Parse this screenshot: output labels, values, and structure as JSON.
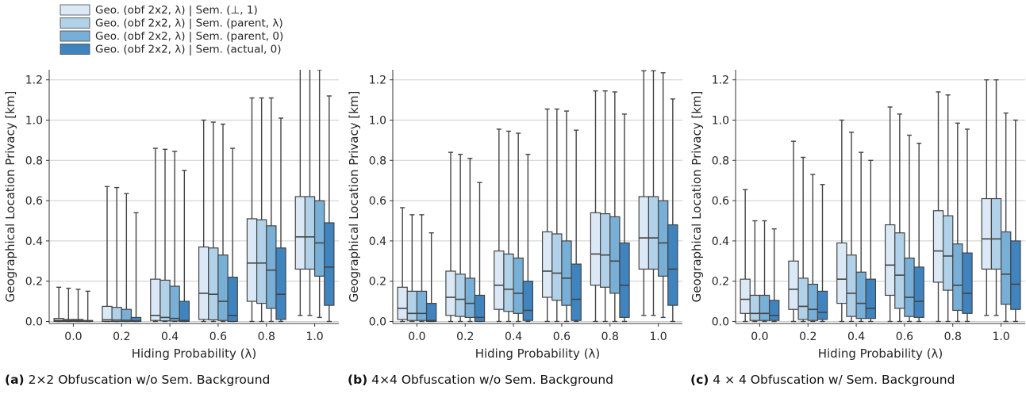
{
  "legend": {
    "entries": [
      {
        "label": "Geo. (obf 2x2, λ) | Sem. (⊥, 1)",
        "color": "#dbe9f6"
      },
      {
        "label": "Geo. (obf 2x2, λ) | Sem. (parent, λ)",
        "color": "#b0d1e7"
      },
      {
        "label": "Geo. (obf 2x2, λ) | Sem. (parent, 0)",
        "color": "#78afd6"
      },
      {
        "label": "Geo. (obf 2x2, λ) | Sem. (actual, 0)",
        "color": "#3f84bf"
      }
    ]
  },
  "captions": [
    {
      "tag": "(a)",
      "text": "2×2 Obfuscation w/o Sem. Background"
    },
    {
      "tag": "(b)",
      "text": "4×4 Obfuscation w/o Sem. Background"
    },
    {
      "tag": "(c)",
      "text": "4 × 4 Obfuscation w/ Sem. Background"
    }
  ],
  "chart_data": [
    {
      "type": "box",
      "xlabel": "Hiding Probability (λ)",
      "ylabel": "Geographical Location Privacy [km]",
      "categories": [
        "0.0",
        "0.2",
        "0.4",
        "0.6",
        "0.8",
        "1.0"
      ],
      "yticks": [
        "0.0",
        "0.2",
        "0.4",
        "0.6",
        "0.8",
        "1.0",
        "1.2"
      ],
      "ylim": [
        -0.01,
        1.25
      ],
      "grid": "horizontal",
      "series": [
        {
          "name": "Geo. (obf 2x2, λ) | Sem. (⊥, 1)",
          "boxes": [
            {
              "min": 0,
              "q1": 0.0,
              "median": 0.005,
              "q3": 0.015,
              "max": 0.17
            },
            {
              "min": 0,
              "q1": 0.0,
              "median": 0.008,
              "q3": 0.075,
              "max": 0.67
            },
            {
              "min": 0,
              "q1": 0.005,
              "median": 0.03,
              "q3": 0.21,
              "max": 0.86
            },
            {
              "min": 0,
              "q1": 0.01,
              "median": 0.14,
              "q3": 0.37,
              "max": 1.0
            },
            {
              "min": 0,
              "q1": 0.1,
              "median": 0.29,
              "q3": 0.51,
              "max": 1.11
            },
            {
              "min": 0.03,
              "q1": 0.26,
              "median": 0.42,
              "q3": 0.62,
              "max": 1.27
            }
          ]
        },
        {
          "name": "Geo. (obf 2x2, λ) | Sem. (parent, λ)",
          "boxes": [
            {
              "min": 0,
              "q1": 0.0,
              "median": 0.004,
              "q3": 0.01,
              "max": 0.165
            },
            {
              "min": 0,
              "q1": 0.0,
              "median": 0.007,
              "q3": 0.07,
              "max": 0.665
            },
            {
              "min": 0,
              "q1": 0.003,
              "median": 0.02,
              "q3": 0.205,
              "max": 0.855
            },
            {
              "min": 0,
              "q1": 0.008,
              "median": 0.135,
              "q3": 0.365,
              "max": 0.99
            },
            {
              "min": 0,
              "q1": 0.09,
              "median": 0.29,
              "q3": 0.505,
              "max": 1.11
            },
            {
              "min": 0.03,
              "q1": 0.26,
              "median": 0.42,
              "q3": 0.62,
              "max": 1.27
            }
          ]
        },
        {
          "name": "Geo. (obf 2x2, λ) | Sem. (parent, 0)",
          "boxes": [
            {
              "min": 0,
              "q1": 0.0,
              "median": 0.004,
              "q3": 0.01,
              "max": 0.16
            },
            {
              "min": 0,
              "q1": 0.0,
              "median": 0.006,
              "q3": 0.06,
              "max": 0.635
            },
            {
              "min": 0,
              "q1": 0.002,
              "median": 0.015,
              "q3": 0.175,
              "max": 0.845
            },
            {
              "min": 0,
              "q1": 0.005,
              "median": 0.1,
              "q3": 0.33,
              "max": 0.98
            },
            {
              "min": 0,
              "q1": 0.065,
              "median": 0.255,
              "q3": 0.475,
              "max": 1.11
            },
            {
              "min": 0.02,
              "q1": 0.225,
              "median": 0.39,
              "q3": 0.6,
              "max": 1.25
            }
          ]
        },
        {
          "name": "Geo. (obf 2x2, λ) | Sem. (actual, 0)",
          "boxes": [
            {
              "min": 0,
              "q1": 0.0,
              "median": 0.002,
              "q3": 0.005,
              "max": 0.15
            },
            {
              "min": 0,
              "q1": 0.0,
              "median": 0.003,
              "q3": 0.02,
              "max": 0.54
            },
            {
              "min": 0,
              "q1": 0.0,
              "median": 0.005,
              "q3": 0.1,
              "max": 0.75
            },
            {
              "min": 0,
              "q1": 0.0,
              "median": 0.03,
              "q3": 0.22,
              "max": 0.86
            },
            {
              "min": 0,
              "q1": 0.01,
              "median": 0.135,
              "q3": 0.365,
              "max": 1.01
            },
            {
              "min": 0,
              "q1": 0.08,
              "median": 0.27,
              "q3": 0.49,
              "max": 1.12
            }
          ]
        }
      ]
    },
    {
      "type": "box",
      "xlabel": "Hiding Probability (λ)",
      "ylabel": "Geographical Location Privacy [km]",
      "categories": [
        "0.0",
        "0.2",
        "0.4",
        "0.6",
        "0.8",
        "1.0"
      ],
      "yticks": [
        "0.0",
        "0.2",
        "0.4",
        "0.6",
        "0.8",
        "1.0",
        "1.2"
      ],
      "ylim": [
        -0.01,
        1.25
      ],
      "grid": "horizontal",
      "series": [
        {
          "name": "Geo. (obf 2x2, λ) | Sem. (⊥, 1)",
          "boxes": [
            {
              "min": 0,
              "q1": 0.01,
              "median": 0.065,
              "q3": 0.17,
              "max": 0.565
            },
            {
              "min": 0,
              "q1": 0.03,
              "median": 0.12,
              "q3": 0.25,
              "max": 0.84
            },
            {
              "min": 0,
              "q1": 0.06,
              "median": 0.18,
              "q3": 0.35,
              "max": 0.955
            },
            {
              "min": 0,
              "q1": 0.12,
              "median": 0.25,
              "q3": 0.445,
              "max": 1.055
            },
            {
              "min": 0,
              "q1": 0.18,
              "median": 0.335,
              "q3": 0.54,
              "max": 1.145
            },
            {
              "min": 0.03,
              "q1": 0.26,
              "median": 0.415,
              "q3": 0.62,
              "max": 1.245
            }
          ]
        },
        {
          "name": "Geo. (obf 2x2, λ) | Sem. (parent, λ)",
          "boxes": [
            {
              "min": 0,
              "q1": 0.005,
              "median": 0.04,
              "q3": 0.15,
              "max": 0.53
            },
            {
              "min": 0,
              "q1": 0.025,
              "median": 0.11,
              "q3": 0.235,
              "max": 0.83
            },
            {
              "min": 0,
              "q1": 0.05,
              "median": 0.16,
              "q3": 0.335,
              "max": 0.945
            },
            {
              "min": 0,
              "q1": 0.105,
              "median": 0.24,
              "q3": 0.435,
              "max": 1.055
            },
            {
              "min": 0,
              "q1": 0.17,
              "median": 0.33,
              "q3": 0.535,
              "max": 1.145
            },
            {
              "min": 0.03,
              "q1": 0.26,
              "median": 0.415,
              "q3": 0.62,
              "max": 1.245
            }
          ]
        },
        {
          "name": "Geo. (obf 2x2, λ) | Sem. (parent, 0)",
          "boxes": [
            {
              "min": 0,
              "q1": 0.005,
              "median": 0.04,
              "q3": 0.15,
              "max": 0.53
            },
            {
              "min": 0,
              "q1": 0.02,
              "median": 0.09,
              "q3": 0.215,
              "max": 0.81
            },
            {
              "min": 0,
              "q1": 0.04,
              "median": 0.14,
              "q3": 0.315,
              "max": 0.935
            },
            {
              "min": 0,
              "q1": 0.08,
              "median": 0.215,
              "q3": 0.4,
              "max": 1.045
            },
            {
              "min": 0,
              "q1": 0.14,
              "median": 0.3,
              "q3": 0.52,
              "max": 1.14
            },
            {
              "min": 0.02,
              "q1": 0.225,
              "median": 0.39,
              "q3": 0.6,
              "max": 1.235
            }
          ]
        },
        {
          "name": "Geo. (obf 2x2, λ) | Sem. (actual, 0)",
          "boxes": [
            {
              "min": 0,
              "q1": 0.0,
              "median": 0.005,
              "q3": 0.09,
              "max": 0.44
            },
            {
              "min": 0,
              "q1": 0.0,
              "median": 0.02,
              "q3": 0.13,
              "max": 0.69
            },
            {
              "min": 0,
              "q1": 0.005,
              "median": 0.055,
              "q3": 0.2,
              "max": 0.83
            },
            {
              "min": 0,
              "q1": 0.005,
              "median": 0.11,
              "q3": 0.285,
              "max": 0.95
            },
            {
              "min": 0,
              "q1": 0.02,
              "median": 0.18,
              "q3": 0.39,
              "max": 1.03
            },
            {
              "min": 0,
              "q1": 0.08,
              "median": 0.26,
              "q3": 0.48,
              "max": 1.105
            }
          ]
        }
      ]
    },
    {
      "type": "box",
      "xlabel": "Hiding Probability (λ)",
      "ylabel": "Geographical Location Privacy [km]",
      "categories": [
        "0.0",
        "0.2",
        "0.4",
        "0.6",
        "0.8",
        "1.0"
      ],
      "yticks": [
        "0.0",
        "0.2",
        "0.4",
        "0.6",
        "0.8",
        "1.0",
        "1.2"
      ],
      "ylim": [
        -0.01,
        1.25
      ],
      "grid": "horizontal",
      "series": [
        {
          "name": "Geo. (obf 2x2, λ) | Sem. (⊥, 1)",
          "boxes": [
            {
              "min": 0,
              "q1": 0.04,
              "median": 0.11,
              "q3": 0.21,
              "max": 0.655
            },
            {
              "min": 0,
              "q1": 0.06,
              "median": 0.16,
              "q3": 0.3,
              "max": 0.895
            },
            {
              "min": 0,
              "q1": 0.09,
              "median": 0.21,
              "q3": 0.39,
              "max": 1.0
            },
            {
              "min": 0,
              "q1": 0.13,
              "median": 0.28,
              "q3": 0.48,
              "max": 1.065
            },
            {
              "min": 0,
              "q1": 0.195,
              "median": 0.35,
              "q3": 0.55,
              "max": 1.14
            },
            {
              "min": 0.03,
              "q1": 0.26,
              "median": 0.41,
              "q3": 0.61,
              "max": 1.2
            }
          ]
        },
        {
          "name": "Geo. (obf 2x2, λ) | Sem. (parent, λ)",
          "boxes": [
            {
              "min": 0,
              "q1": 0.005,
              "median": 0.04,
              "q3": 0.13,
              "max": 0.5
            },
            {
              "min": 0,
              "q1": 0.01,
              "median": 0.075,
              "q3": 0.215,
              "max": 0.815
            },
            {
              "min": 0,
              "q1": 0.025,
              "median": 0.14,
              "q3": 0.33,
              "max": 0.94
            },
            {
              "min": 0,
              "q1": 0.065,
              "median": 0.23,
              "q3": 0.44,
              "max": 1.03
            },
            {
              "min": 0,
              "q1": 0.155,
              "median": 0.325,
              "q3": 0.525,
              "max": 1.125
            },
            {
              "min": 0.03,
              "q1": 0.26,
              "median": 0.41,
              "q3": 0.61,
              "max": 1.2
            }
          ]
        },
        {
          "name": "Geo. (obf 2x2, λ) | Sem. (parent, 0)",
          "boxes": [
            {
              "min": 0,
              "q1": 0.005,
              "median": 0.04,
              "q3": 0.13,
              "max": 0.5
            },
            {
              "min": 0,
              "q1": 0.005,
              "median": 0.06,
              "q3": 0.185,
              "max": 0.73
            },
            {
              "min": 0,
              "q1": 0.015,
              "median": 0.09,
              "q3": 0.245,
              "max": 0.84
            },
            {
              "min": 0,
              "q1": 0.025,
              "median": 0.12,
              "q3": 0.315,
              "max": 0.925
            },
            {
              "min": 0,
              "q1": 0.055,
              "median": 0.18,
              "q3": 0.385,
              "max": 0.985
            },
            {
              "min": 0,
              "q1": 0.085,
              "median": 0.235,
              "q3": 0.445,
              "max": 1.035
            }
          ]
        },
        {
          "name": "Geo. (obf 2x2, λ) | Sem. (actual, 0)",
          "boxes": [
            {
              "min": 0,
              "q1": 0.005,
              "median": 0.03,
              "q3": 0.105,
              "max": 0.46
            },
            {
              "min": 0,
              "q1": 0.01,
              "median": 0.045,
              "q3": 0.15,
              "max": 0.68
            },
            {
              "min": 0,
              "q1": 0.015,
              "median": 0.065,
              "q3": 0.21,
              "max": 0.8
            },
            {
              "min": 0,
              "q1": 0.02,
              "median": 0.1,
              "q3": 0.27,
              "max": 0.885
            },
            {
              "min": 0,
              "q1": 0.04,
              "median": 0.14,
              "q3": 0.34,
              "max": 0.955
            },
            {
              "min": 0,
              "q1": 0.06,
              "median": 0.185,
              "q3": 0.4,
              "max": 1.0
            }
          ]
        }
      ]
    }
  ]
}
